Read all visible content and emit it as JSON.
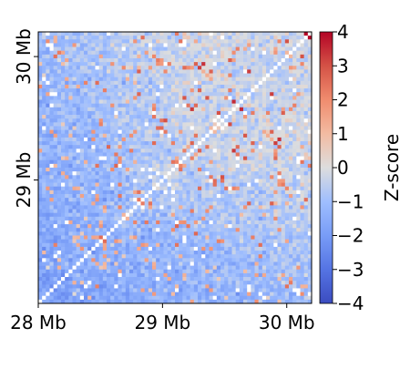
{
  "chart_data": {
    "type": "heatmap",
    "title": "",
    "x_axis": {
      "range_mb": [
        28.0,
        30.2
      ],
      "ticks": [
        {
          "value": 28,
          "label": "28 Mb"
        },
        {
          "value": 29,
          "label": "29 Mb"
        },
        {
          "value": 30,
          "label": "30 Mb"
        }
      ]
    },
    "y_axis": {
      "range_mb": [
        28.0,
        30.2
      ],
      "ticks": [
        {
          "value": 29,
          "label": "29 Mb"
        },
        {
          "value": 30,
          "label": "30 Mb"
        }
      ]
    },
    "colorbar": {
      "label": "Z-score",
      "vmin": -4,
      "vmax": 4,
      "colormap": "coolwarm",
      "ticks": [
        {
          "value": 4,
          "label": "4"
        },
        {
          "value": 3,
          "label": "3"
        },
        {
          "value": 2,
          "label": "2"
        },
        {
          "value": 1,
          "label": "1"
        },
        {
          "value": 0,
          "label": "0"
        },
        {
          "value": -1,
          "label": "−1"
        },
        {
          "value": -2,
          "label": "−2"
        },
        {
          "value": -3,
          "label": "−3"
        },
        {
          "value": -4,
          "label": "−4"
        }
      ]
    },
    "matrix": {
      "bins": 72,
      "diagonal": "masked (white)",
      "symmetric": true,
      "pattern": "distance-dependent gradient: strongly negative (blue) near 28 Mb, near-zero/neutral far off-diagonal, scattered positive (red) cells toward upper right",
      "bin_size_mb": 0.03
    },
    "colors": {
      "cold": "#3b4cc0",
      "neutral": "#dddddd",
      "hot": "#b40426",
      "missing": "#ffffff"
    }
  }
}
